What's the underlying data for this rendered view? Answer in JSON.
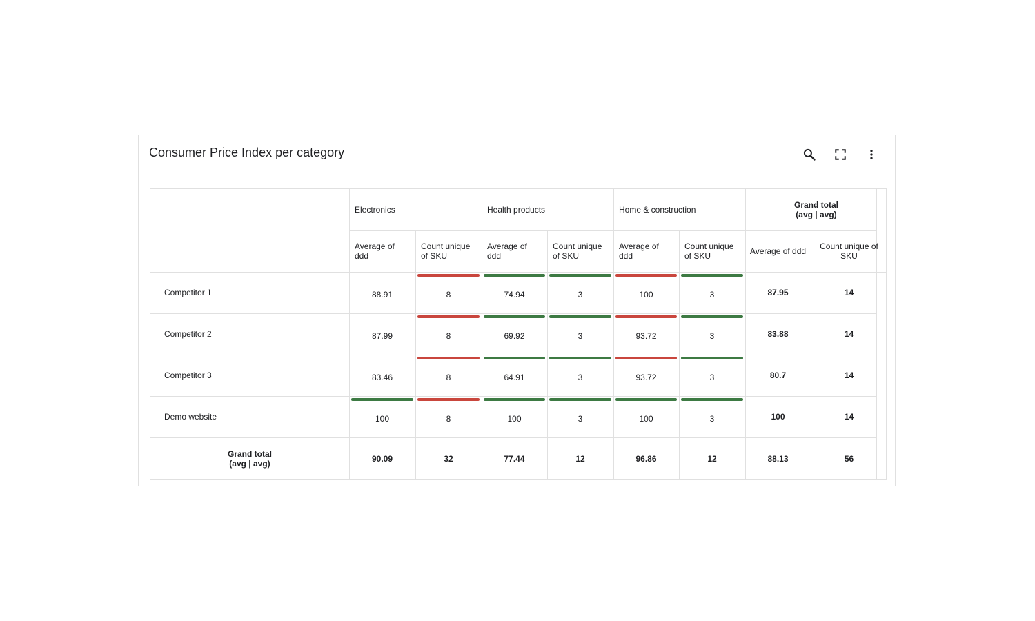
{
  "widget": {
    "title": "Consumer Price Index per category",
    "toolbar": {
      "search_icon": "search-icon",
      "fullscreen_icon": "fullscreen-icon",
      "more_icon": "more-vert-icon"
    }
  },
  "table": {
    "categories": [
      {
        "label": "Electronics"
      },
      {
        "label": "Health products"
      },
      {
        "label": "Home & construction"
      }
    ],
    "grand_total_header": {
      "line1": "Grand total",
      "line2": "(avg | avg)"
    },
    "measures": {
      "avg": {
        "line1": "Average of",
        "line2": "ddd"
      },
      "count": {
        "line1": "Count unique",
        "line2": "of SKU"
      },
      "gt_avg": "Average of ddd",
      "gt_count": {
        "line1": "Count unique of",
        "line2": "SKU"
      }
    },
    "rows": [
      {
        "label": "Competitor 1",
        "values": [
          "88.91",
          "8",
          "74.94",
          "3",
          "100",
          "3"
        ],
        "status": [
          "none",
          "red",
          "green",
          "green",
          "red",
          "green"
        ],
        "gt": [
          "87.95",
          "14"
        ]
      },
      {
        "label": "Competitor 2",
        "values": [
          "87.99",
          "8",
          "69.92",
          "3",
          "93.72",
          "3"
        ],
        "status": [
          "none",
          "red",
          "green",
          "green",
          "red",
          "green"
        ],
        "gt": [
          "83.88",
          "14"
        ]
      },
      {
        "label": "Competitor 3",
        "values": [
          "83.46",
          "8",
          "64.91",
          "3",
          "93.72",
          "3"
        ],
        "status": [
          "none",
          "red",
          "green",
          "green",
          "red",
          "green"
        ],
        "gt": [
          "80.7",
          "14"
        ]
      },
      {
        "label": "Demo website",
        "values": [
          "100",
          "8",
          "100",
          "3",
          "100",
          "3"
        ],
        "status": [
          "green",
          "red",
          "green",
          "green",
          "green",
          "green"
        ],
        "gt": [
          "100",
          "14"
        ]
      }
    ],
    "grand_total_row": {
      "label_line1": "Grand total",
      "label_line2": "(avg | avg)",
      "values": [
        "90.09",
        "32",
        "77.44",
        "12",
        "96.86",
        "12",
        "88.13",
        "56"
      ]
    },
    "colors": {
      "green": "#3d7a43",
      "red": "#c9463d",
      "grid": "#e0e0e0"
    }
  }
}
